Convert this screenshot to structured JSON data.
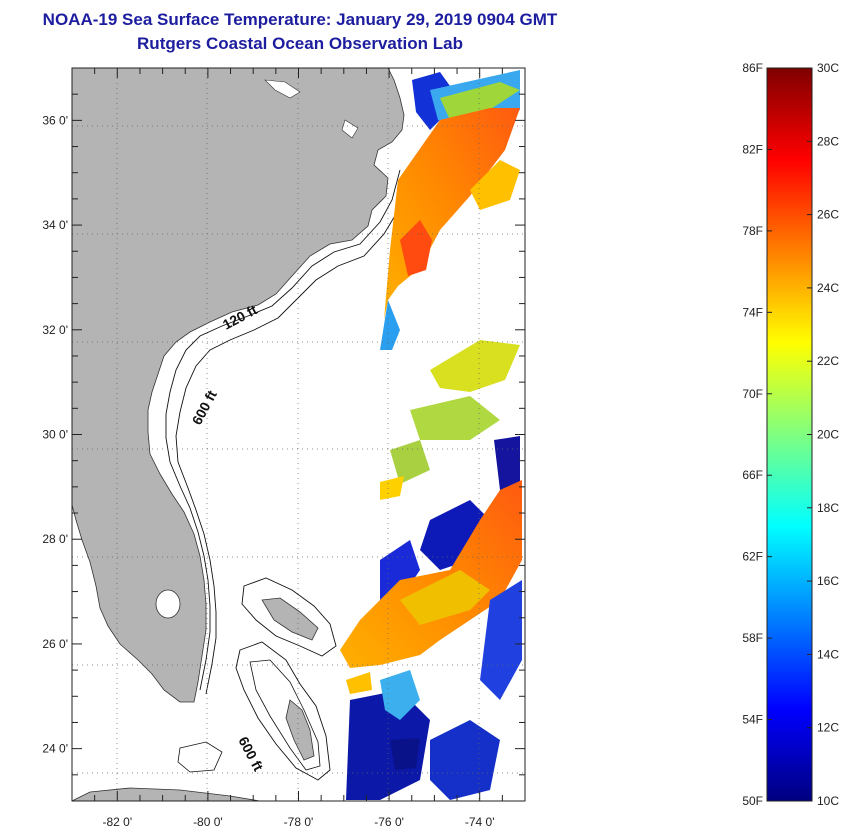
{
  "header": {
    "title": "NOAA-19 Sea Surface Temperature:  January 29, 2019 0904 GMT",
    "subtitle": "Rutgers Coastal Ocean Observation Lab"
  },
  "map": {
    "lon_range": [
      -83,
      -73
    ],
    "lat_range": [
      23,
      37
    ],
    "lon_ticks": [
      "-82 0'",
      "-80 0'",
      "-78 0'",
      "-76 0'",
      "-74 0'"
    ],
    "lat_ticks": [
      "36 0'",
      "34 0'",
      "32 0'",
      "30 0'",
      "28 0'",
      "26 0'",
      "24 0'"
    ],
    "contour_labels": [
      "120 ft",
      "600 ft",
      "600 ft"
    ],
    "colors": {
      "land": "#b4b4b4",
      "ocean": "#ffffff"
    }
  },
  "colorbar": {
    "f_labels": [
      "86F",
      "82F",
      "78F",
      "74F",
      "70F",
      "66F",
      "62F",
      "58F",
      "54F",
      "50F"
    ],
    "c_labels": [
      "30C",
      "28C",
      "26C",
      "24C",
      "22C",
      "20C",
      "18C",
      "16C",
      "14C",
      "12C",
      "10C"
    ],
    "range_c": [
      10,
      30
    ],
    "range_f": [
      50,
      86
    ],
    "colormap": "jet"
  }
}
